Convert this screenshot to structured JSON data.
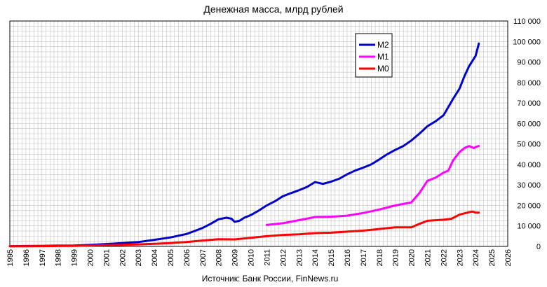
{
  "chart_data": {
    "type": "line",
    "title": "Денежная масса, млрд рублей",
    "source": "Источник: Банк России, FinNews.ru",
    "xlim": [
      1995,
      2026
    ],
    "ylim": [
      0,
      110000
    ],
    "x_ticks": [
      "1995",
      "1996",
      "1997",
      "1998",
      "1999",
      "2000",
      "2001",
      "2002",
      "2003",
      "2004",
      "2005",
      "2006",
      "2007",
      "2008",
      "2009",
      "2010",
      "2011",
      "2012",
      "2013",
      "2014",
      "2015",
      "2016",
      "2017",
      "2018",
      "2019",
      "2020",
      "2021",
      "2022",
      "2023",
      "2024",
      "2025",
      "2026"
    ],
    "y_ticks": [
      "0",
      "10 000",
      "20 000",
      "30 000",
      "40 000",
      "50 000",
      "60 000",
      "70 000",
      "80 000",
      "90 000",
      "100 000",
      "110 000"
    ],
    "y_tick_values": [
      0,
      10000,
      20000,
      30000,
      40000,
      50000,
      60000,
      70000,
      80000,
      90000,
      100000,
      110000
    ],
    "grid": true,
    "legend_position": "top-right",
    "series": [
      {
        "name": "M2",
        "color": "#0000cc",
        "x": [
          1995,
          1996,
          1997,
          1998,
          1999,
          2000,
          2001,
          2002,
          2003,
          2004,
          2005,
          2006,
          2006.5,
          2007,
          2007.5,
          2008,
          2008.5,
          2008.8,
          2009,
          2009.3,
          2009.6,
          2010,
          2010.5,
          2011,
          2011.5,
          2012,
          2012.5,
          2013,
          2013.5,
          2014,
          2014.5,
          2015,
          2015.5,
          2016,
          2016.5,
          2017,
          2017.5,
          2018,
          2018.5,
          2019,
          2019.5,
          2020,
          2020.5,
          2021,
          2021.5,
          2022,
          2022.3,
          2022.6,
          2023,
          2023.3,
          2023.6,
          2024,
          2024.2
        ],
        "y": [
          100,
          200,
          290,
          370,
          450,
          710,
          1150,
          1610,
          2130,
          3210,
          4360,
          6050,
          7500,
          8970,
          11000,
          13270,
          14000,
          13500,
          12000,
          12500,
          14000,
          15270,
          17500,
          20010,
          22000,
          24480,
          26000,
          27400,
          29000,
          31400,
          30500,
          31610,
          33000,
          35180,
          37000,
          38420,
          40000,
          42440,
          45000,
          47100,
          49000,
          51700,
          55000,
          58650,
          61000,
          64000,
          68000,
          72000,
          77000,
          83000,
          88000,
          93000,
          99000
        ]
      },
      {
        "name": "M1",
        "color": "#ff00ff",
        "x": [
          2011,
          2012,
          2013,
          2014,
          2015,
          2016,
          2017,
          2018,
          2019,
          2020,
          2020.5,
          2021,
          2021.5,
          2022,
          2022.3,
          2022.6,
          2023,
          2023.3,
          2023.6,
          2023.9,
          2024,
          2024.2
        ],
        "y": [
          10500,
          11300,
          12800,
          14300,
          14500,
          15000,
          16300,
          18000,
          20000,
          21500,
          26000,
          32000,
          33500,
          36000,
          37000,
          42000,
          46000,
          48000,
          49000,
          48000,
          48500,
          49000
        ]
      },
      {
        "name": "M0",
        "color": "#ff0000",
        "x": [
          1995,
          1996,
          1997,
          1998,
          1999,
          2000,
          2001,
          2002,
          2003,
          2004,
          2005,
          2006,
          2007,
          2008,
          2009,
          2010,
          2011,
          2012,
          2013,
          2014,
          2015,
          2016,
          2017,
          2018,
          2019,
          2020,
          2020.5,
          2021,
          2022,
          2022.5,
          2023,
          2023.5,
          2023.8,
          2024,
          2024.2
        ],
        "y": [
          80,
          100,
          130,
          190,
          270,
          420,
          580,
          760,
          1000,
          1290,
          1650,
          2150,
          2880,
          3480,
          3420,
          4200,
          5000,
          5600,
          5900,
          6500,
          6700,
          7200,
          7700,
          8500,
          9300,
          9300,
          11000,
          12500,
          13000,
          13500,
          15500,
          16500,
          17000,
          16500,
          16500
        ]
      }
    ]
  }
}
